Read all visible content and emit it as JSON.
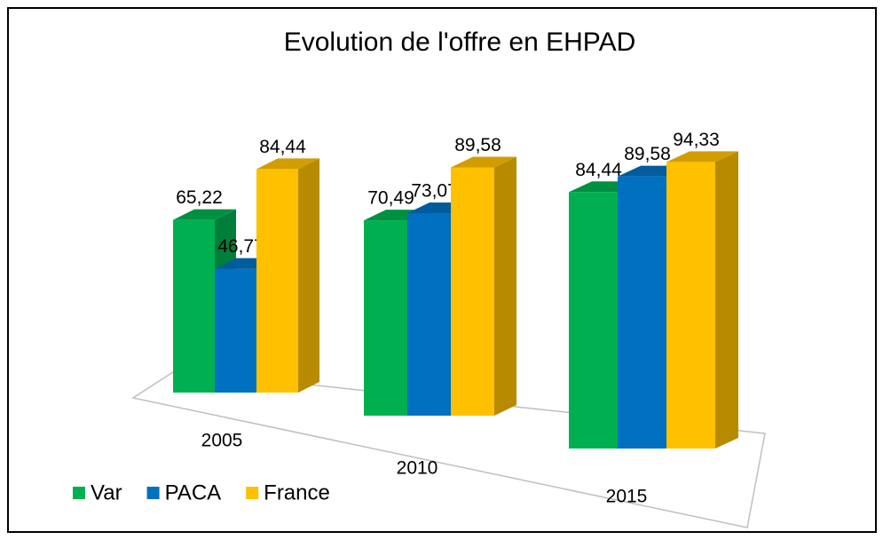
{
  "chart_data": {
    "type": "bar3d",
    "title": "Evolution de l'offre en EHPAD",
    "categories": [
      "2005",
      "2010",
      "2015"
    ],
    "series": [
      {
        "name": "Var",
        "color": "#00b050",
        "values": [
          65.22,
          70.49,
          84.44
        ],
        "value_labels": [
          "65,22",
          "70,49",
          "84,44"
        ]
      },
      {
        "name": "PACA",
        "color": "#0070c0",
        "values": [
          46.77,
          73.07,
          89.58
        ],
        "value_labels": [
          "46,77",
          "73,07",
          "89,58"
        ]
      },
      {
        "name": "France",
        "color": "#ffc000",
        "values": [
          84.44,
          89.58,
          94.33
        ],
        "value_labels": [
          "84,44",
          "89,58",
          "94,33"
        ]
      }
    ],
    "legend": "bottom-left"
  }
}
